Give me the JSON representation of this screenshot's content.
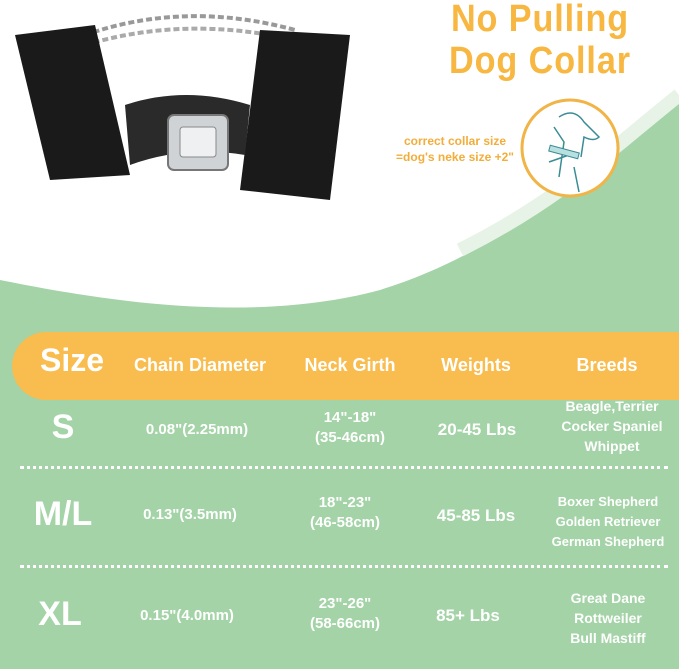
{
  "title": {
    "line1": "No Pulling",
    "line2": "Dog Collar"
  },
  "note": {
    "line1": "correct collar  size",
    "line2": "=dog's neke size +2\""
  },
  "colors": {
    "orange": "#f9bc4f",
    "green": "#a3d3a6",
    "white": "#ffffff"
  },
  "table": {
    "headers": [
      "Size",
      "Chain Diameter",
      "Neck Girth",
      "Weights",
      "Breeds"
    ],
    "rows": [
      {
        "size": "S",
        "chain": "0.08\"(2.25mm)",
        "neck1": "14\"-18\"",
        "neck2": "(35-46cm)",
        "weight": "20-45 Lbs",
        "breeds": [
          "Beagle,Terrier",
          "Cocker Spaniel",
          "Whippet"
        ]
      },
      {
        "size": "M/L",
        "chain": "0.13\"(3.5mm)",
        "neck1": "18\"-23\"",
        "neck2": "(46-58cm)",
        "weight": "45-85 Lbs",
        "breeds": [
          "Boxer Shepherd",
          "Golden Retriever",
          "German Shepherd"
        ]
      },
      {
        "size": "XL",
        "chain": "0.15\"(4.0mm)",
        "neck1": "23\"-26\"",
        "neck2": "(58-66cm)",
        "weight": "85+ Lbs",
        "breeds": [
          "Great Dane",
          "Rottweiler",
          "Bull Mastiff"
        ]
      }
    ]
  }
}
